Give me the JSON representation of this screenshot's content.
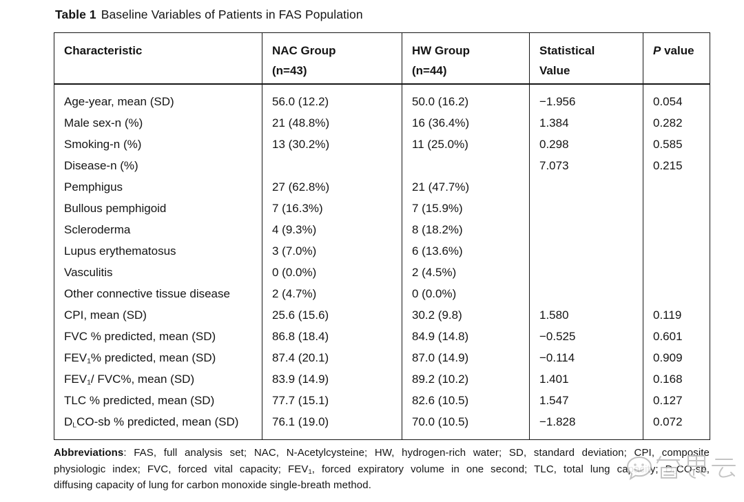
{
  "title": {
    "bold": "Table 1",
    "text": "Baseline Variables of Patients in FAS Population"
  },
  "table": {
    "columns": [
      {
        "key": "characteristic",
        "label_lines": [
          "Characteristic"
        ]
      },
      {
        "key": "nac-group",
        "label_lines": [
          "NAC Group",
          "(n=43)"
        ]
      },
      {
        "key": "hw-group",
        "label_lines": [
          "HW Group",
          "(n=44)"
        ]
      },
      {
        "key": "statistical-value",
        "label_lines": [
          "Statistical",
          "Value"
        ]
      },
      {
        "key": "p-value",
        "label_lines": [
          "*P* value"
        ]
      }
    ],
    "rows": [
      [
        "Age-year, mean (SD)",
        "56.0 (12.2)",
        "50.0 (16.2)",
        "−1.956",
        "0.054"
      ],
      [
        "Male sex-n (%)",
        "21 (48.8%)",
        "16 (36.4%)",
        "1.384",
        "0.282"
      ],
      [
        "Smoking-n (%)",
        "13 (30.2%)",
        "11 (25.0%)",
        "0.298",
        "0.585"
      ],
      [
        "Disease-n (%)",
        "",
        "",
        "7.073",
        "0.215"
      ],
      [
        "Pemphigus",
        "27 (62.8%)",
        "21 (47.7%)",
        "",
        ""
      ],
      [
        "Bullous pemphigoid",
        "7 (16.3%)",
        "7 (15.9%)",
        "",
        ""
      ],
      [
        "Scleroderma",
        "4 (9.3%)",
        "8 (18.2%)",
        "",
        ""
      ],
      [
        "Lupus erythematosus",
        "3 (7.0%)",
        "6 (13.6%)",
        "",
        ""
      ],
      [
        "Vasculitis",
        "0 (0.0%)",
        "2 (4.5%)",
        "",
        ""
      ],
      [
        "Other connective tissue disease",
        "2 (4.7%)",
        "0 (0.0%)",
        "",
        ""
      ],
      [
        "CPI, mean (SD)",
        "25.6 (15.6)",
        "30.2 (9.8)",
        "1.580",
        "0.119"
      ],
      [
        "FVC % predicted, mean (SD)",
        "86.8 (18.4)",
        "84.9 (14.8)",
        "−0.525",
        "0.601"
      ],
      [
        "FEV~1~% predicted, mean (SD)",
        "87.4 (20.1)",
        "87.0 (14.9)",
        "−0.114",
        "0.909"
      ],
      [
        "FEV~1~/ FVC%, mean (SD)",
        "83.9 (14.9)",
        "89.2 (10.2)",
        "1.401",
        "0.168"
      ],
      [
        "TLC % predicted, mean (SD)",
        "77.7 (15.1)",
        "82.6 (10.5)",
        "1.547",
        "0.127"
      ],
      [
        "D~L~CO-sb % predicted, mean (SD)",
        "76.1 (19.0)",
        "70.0 (10.5)",
        "−1.828",
        "0.072"
      ]
    ]
  },
  "footnote": {
    "label": "Abbreviations",
    "line1_rest": ": FAS, full analysis set; NAC, N-Acetylcysteine; HW, hydrogen-rich water; SD, standard deviation; CPI, composite",
    "line2": "physiologic index; FVC, forced vital capacity; FEV~1~, forced expiratory volume in one second; TLC, total lung capacity; D~L~CO-sb,",
    "line3": "diffusing capacity of lung for carbon monoxide single-breath method."
  },
  "watermark": {
    "text": "氢思云",
    "icon": "chat-bubble-face-logo",
    "color": "#b9b9b9"
  }
}
